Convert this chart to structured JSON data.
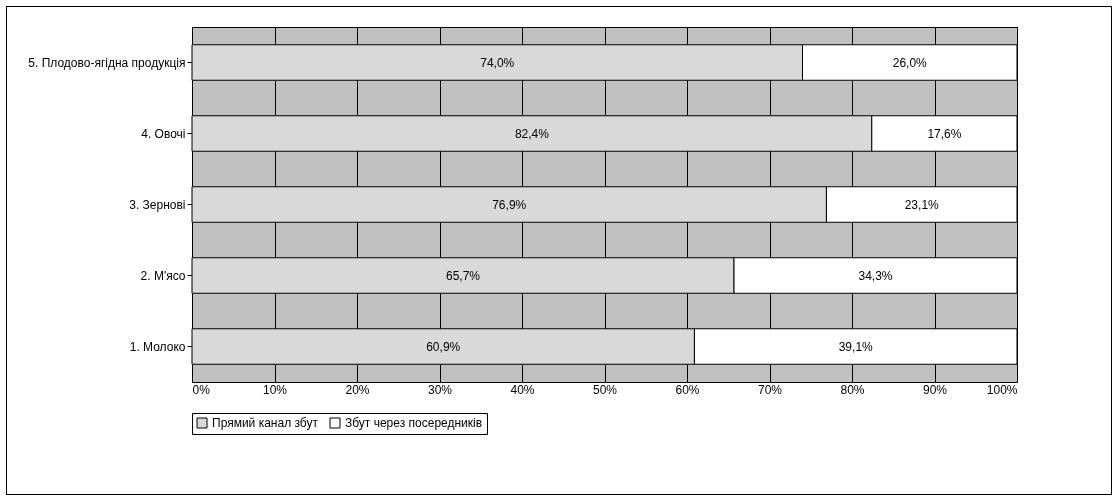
{
  "chart_data": {
    "type": "bar",
    "orientation": "horizontal",
    "stacked": true,
    "categories": [
      "5. Плодово-ягідна продукція",
      "4. Овочі",
      "3. Зернові",
      "2. М'ясо",
      "1. Молоко"
    ],
    "series": [
      {
        "name": "Прямий канал збут",
        "color": "#d9d9d9",
        "values": [
          74.0,
          82.4,
          76.9,
          65.7,
          60.9
        ],
        "value_labels": [
          "74,0%",
          "82,4%",
          "76,9%",
          "65,7%",
          "60,9%"
        ]
      },
      {
        "name": "Збут через посередників",
        "color": "#ffffff",
        "values": [
          26.0,
          17.6,
          23.1,
          34.3,
          39.1
        ],
        "value_labels": [
          "26,0%",
          "17,6%",
          "23,1%",
          "34,3%",
          "39,1%"
        ]
      }
    ],
    "xlim": [
      0,
      100
    ],
    "xticks": [
      {
        "value": 0,
        "label": "0%"
      },
      {
        "value": 10,
        "label": "10%"
      },
      {
        "value": 20,
        "label": "20%"
      },
      {
        "value": 30,
        "label": "30%"
      },
      {
        "value": 40,
        "label": "40%"
      },
      {
        "value": 50,
        "label": "50%"
      },
      {
        "value": 60,
        "label": "60%"
      },
      {
        "value": 70,
        "label": "70%"
      },
      {
        "value": 80,
        "label": "80%"
      },
      {
        "value": 90,
        "label": "90%"
      },
      {
        "value": 100,
        "label": "100%"
      }
    ],
    "grid": "x",
    "legend": "bottom"
  }
}
